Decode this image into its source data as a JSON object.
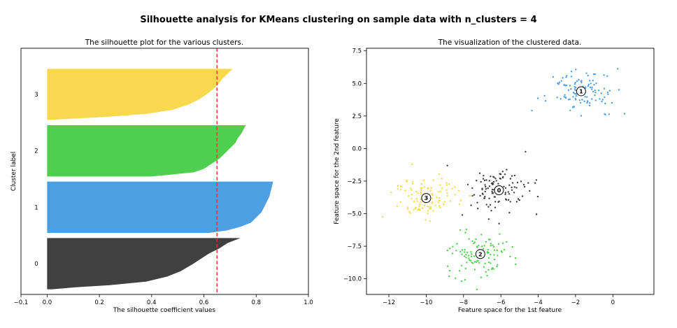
{
  "figure": {
    "suptitle": "Silhouette analysis for KMeans clustering on sample data with n_clusters = 4"
  },
  "chart_data": [
    {
      "type": "area",
      "title": "The silhouette plot for the various clusters.",
      "xlabel": "The silhouette coefficient values",
      "ylabel": "Cluster label",
      "xlim": [
        -0.1,
        1.0
      ],
      "ylim": [
        0,
        480
      ],
      "xticks": [
        -0.1,
        0.0,
        0.2,
        0.4,
        0.6,
        0.8,
        1.0
      ],
      "xtick_labels": [
        "−0.1",
        "0.0",
        "0.2",
        "0.4",
        "0.6",
        "0.8",
        "1.0"
      ],
      "grid": false,
      "average_silhouette": 0.65,
      "average_line_color": "#e8312f",
      "clusters": [
        {
          "label": "0",
          "color": "#404040",
          "y_range": [
            10,
            110
          ],
          "profile": [
            [
              0,
              0.02
            ],
            [
              0.04,
              0.11
            ],
            [
              0.08,
              0.24
            ],
            [
              0.15,
              0.38
            ],
            [
              0.25,
              0.46
            ],
            [
              0.35,
              0.51
            ],
            [
              0.5,
              0.56
            ],
            [
              0.6,
              0.59
            ],
            [
              0.7,
              0.62
            ],
            [
              0.8,
              0.66
            ],
            [
              0.9,
              0.69
            ],
            [
              1,
              0.74
            ]
          ]
        },
        {
          "label": "1",
          "color": "#4c9fe3",
          "y_range": [
            120,
            220
          ],
          "profile": [
            [
              0,
              0.62
            ],
            [
              0.05,
              0.69
            ],
            [
              0.12,
              0.74
            ],
            [
              0.2,
              0.78
            ],
            [
              0.3,
              0.8
            ],
            [
              0.4,
              0.82
            ],
            [
              0.5,
              0.83
            ],
            [
              0.6,
              0.84
            ],
            [
              0.7,
              0.85
            ],
            [
              0.8,
              0.855
            ],
            [
              0.9,
              0.86
            ],
            [
              1,
              0.865
            ]
          ]
        },
        {
          "label": "2",
          "color": "#4ecf4e",
          "y_range": [
            230,
            330
          ],
          "profile": [
            [
              0,
              0.4
            ],
            [
              0.08,
              0.56
            ],
            [
              0.15,
              0.6
            ],
            [
              0.25,
              0.63
            ],
            [
              0.35,
              0.66
            ],
            [
              0.45,
              0.68
            ],
            [
              0.55,
              0.7
            ],
            [
              0.65,
              0.72
            ],
            [
              0.75,
              0.73
            ],
            [
              0.85,
              0.745
            ],
            [
              1,
              0.76
            ]
          ]
        },
        {
          "label": "3",
          "color": "#f8d84e",
          "y_range": [
            340,
            440
          ],
          "profile": [
            [
              0,
              0.0
            ],
            [
              0.06,
              0.22
            ],
            [
              0.12,
              0.38
            ],
            [
              0.2,
              0.48
            ],
            [
              0.3,
              0.54
            ],
            [
              0.4,
              0.58
            ],
            [
              0.5,
              0.61
            ],
            [
              0.6,
              0.635
            ],
            [
              0.7,
              0.655
            ],
            [
              0.8,
              0.67
            ],
            [
              0.9,
              0.69
            ],
            [
              1,
              0.71
            ]
          ]
        }
      ]
    },
    {
      "type": "scatter",
      "title": "The visualization of the clustered data.",
      "xlabel": "Feature space for the 1st feature",
      "ylabel": "Feature space for the 2nd feature",
      "xlim": [
        -13.2,
        2.2
      ],
      "ylim": [
        -11.2,
        7.7
      ],
      "xticks": [
        -12,
        -10,
        -8,
        -6,
        -4,
        -2,
        0
      ],
      "xtick_labels": [
        "−12",
        "−10",
        "−8",
        "−6",
        "−4",
        "−2",
        "0"
      ],
      "yticks": [
        -10.0,
        -7.5,
        -5.0,
        -2.5,
        0.0,
        2.5,
        5.0,
        7.5
      ],
      "ytick_labels": [
        "−10.0",
        "−7.5",
        "−5.0",
        "−2.5",
        "0.0",
        "2.5",
        "5.0",
        "7.5"
      ],
      "grid": false,
      "series": [
        {
          "name": "0",
          "color": "#404040",
          "center": [
            -6.1,
            -3.2
          ],
          "spread": [
            0.85,
            0.9
          ],
          "n": 110
        },
        {
          "name": "1",
          "color": "#4c9fe3",
          "center": [
            -1.7,
            4.4
          ],
          "spread": [
            0.9,
            0.85
          ],
          "n": 110
        },
        {
          "name": "2",
          "color": "#4ecf4e",
          "center": [
            -7.1,
            -8.1
          ],
          "spread": [
            0.85,
            0.8
          ],
          "n": 110
        },
        {
          "name": "3",
          "color": "#f8d84e",
          "center": [
            -10.0,
            -3.8
          ],
          "spread": [
            0.9,
            0.75
          ],
          "n": 110
        }
      ]
    }
  ]
}
